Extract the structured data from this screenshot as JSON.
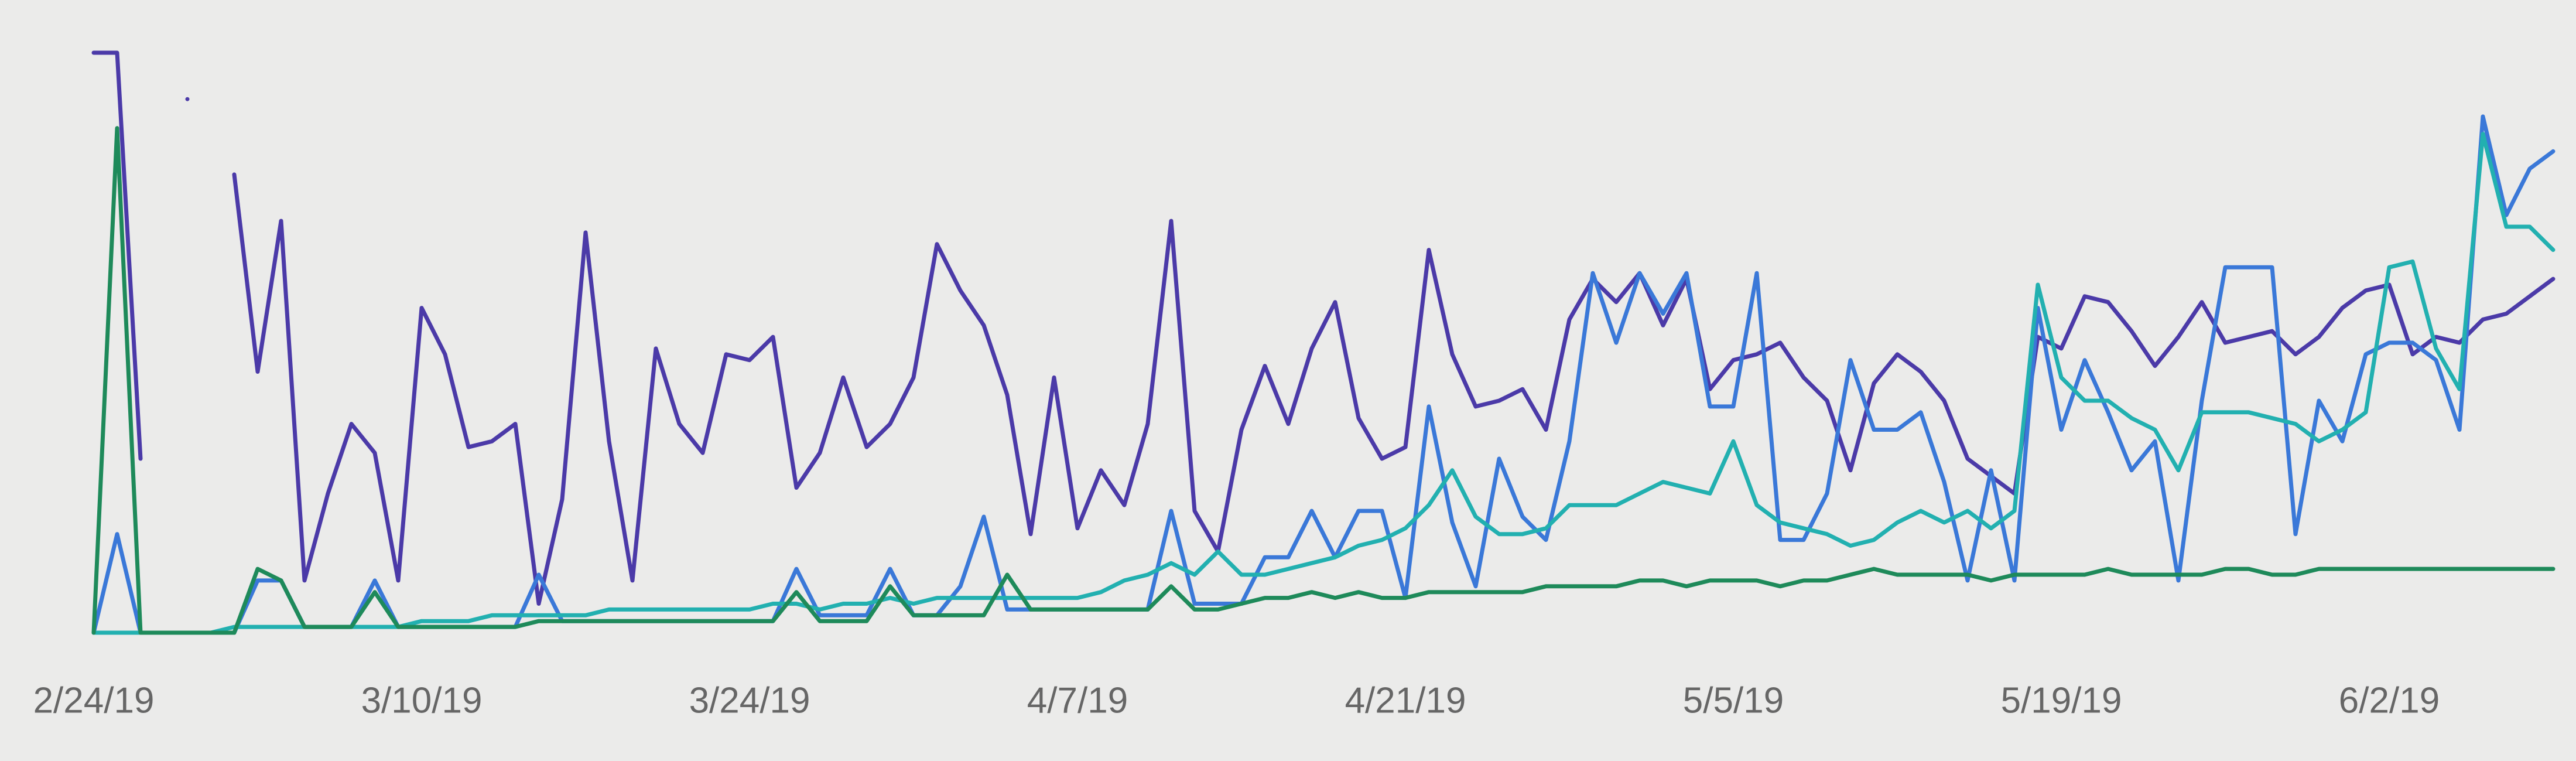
{
  "chart_data": {
    "type": "line",
    "categories": [
      "2/24/19",
      null,
      null,
      null,
      null,
      null,
      null,
      null,
      null,
      null,
      null,
      null,
      null,
      null,
      "3/10/19",
      null,
      null,
      null,
      null,
      null,
      null,
      null,
      null,
      null,
      null,
      null,
      null,
      null,
      "3/24/19",
      null,
      null,
      null,
      null,
      null,
      null,
      null,
      null,
      null,
      null,
      null,
      null,
      null,
      "4/7/19",
      null,
      null,
      null,
      null,
      null,
      null,
      null,
      null,
      null,
      null,
      null,
      null,
      null,
      "4/21/19",
      null,
      null,
      null,
      null,
      null,
      null,
      null,
      null,
      null,
      null,
      null,
      null,
      null,
      "5/5/19",
      null,
      null,
      null,
      null,
      null,
      null,
      null,
      null,
      null,
      null,
      null,
      null,
      null,
      "5/19/19",
      null,
      null,
      null,
      null,
      null,
      null,
      null,
      null,
      null,
      null,
      null,
      null,
      null,
      "6/2/19",
      null,
      null,
      null,
      null,
      null,
      null,
      null
    ],
    "ylim": [
      0,
      100
    ],
    "series": [
      {
        "color": "#4b3aa8",
        "values": [
          100,
          100,
          30,
          null,
          92,
          null,
          79,
          45,
          71,
          9,
          24,
          36,
          31,
          9,
          56,
          48,
          32,
          33,
          36,
          5,
          23,
          69,
          33,
          9,
          49,
          36,
          31,
          48,
          47,
          51,
          25,
          31,
          44,
          32,
          36,
          44,
          67,
          59,
          53,
          41,
          17,
          44,
          18,
          28,
          22,
          36,
          71,
          21,
          14,
          35,
          46,
          36,
          49,
          57,
          37,
          30,
          32,
          66,
          48,
          39,
          40,
          42,
          35,
          54,
          61,
          57,
          62,
          53,
          61,
          42,
          47,
          48,
          50,
          44,
          40,
          28,
          43,
          48,
          45,
          40,
          30,
          27,
          24,
          51,
          49,
          58,
          57,
          52,
          46,
          51,
          57,
          50,
          51,
          52,
          48,
          51,
          56,
          59,
          60,
          48,
          51,
          50,
          54,
          55,
          58,
          61
        ]
      },
      {
        "color": "#3a78d8",
        "values": [
          0,
          17,
          0,
          0,
          0,
          0,
          0,
          9,
          9,
          1,
          1,
          1,
          9,
          1,
          1,
          1,
          1,
          1,
          1,
          10,
          2,
          2,
          2,
          2,
          2,
          2,
          2,
          2,
          2,
          2,
          11,
          3,
          3,
          3,
          11,
          3,
          3,
          8,
          20,
          4,
          4,
          4,
          4,
          4,
          4,
          4,
          21,
          5,
          5,
          5,
          13,
          13,
          21,
          13,
          21,
          21,
          6,
          39,
          19,
          8,
          30,
          20,
          16,
          33,
          62,
          50,
          62,
          55,
          62,
          39,
          39,
          62,
          16,
          16,
          24,
          47,
          35,
          35,
          38,
          26,
          9,
          28,
          9,
          56,
          35,
          47,
          38,
          28,
          33,
          9,
          40,
          63,
          63,
          63,
          17,
          40,
          33,
          48,
          50,
          50,
          47,
          35,
          89,
          72,
          80,
          83
        ]
      },
      {
        "color": "#22b0b0",
        "values": [
          0,
          0,
          0,
          0,
          0,
          0,
          1,
          1,
          1,
          1,
          1,
          1,
          1,
          1,
          2,
          2,
          2,
          3,
          3,
          3,
          3,
          3,
          4,
          4,
          4,
          4,
          4,
          4,
          4,
          5,
          5,
          4,
          5,
          5,
          6,
          5,
          6,
          6,
          6,
          6,
          6,
          6,
          6,
          7,
          9,
          10,
          12,
          10,
          14,
          10,
          10,
          11,
          12,
          13,
          15,
          16,
          18,
          22,
          28,
          20,
          17,
          17,
          18,
          22,
          22,
          22,
          24,
          26,
          25,
          24,
          33,
          22,
          19,
          18,
          17,
          15,
          16,
          19,
          21,
          19,
          21,
          18,
          21,
          60,
          44,
          40,
          40,
          37,
          35,
          28,
          38,
          38,
          38,
          37,
          36,
          33,
          35,
          38,
          63,
          64,
          49,
          42,
          86,
          70,
          70,
          66
        ]
      },
      {
        "color": "#1e8a5a",
        "values": [
          0,
          87,
          0,
          0,
          0,
          0,
          0,
          11,
          9,
          1,
          1,
          1,
          7,
          1,
          1,
          1,
          1,
          1,
          1,
          2,
          2,
          2,
          2,
          2,
          2,
          2,
          2,
          2,
          2,
          2,
          7,
          2,
          2,
          2,
          8,
          3,
          3,
          3,
          3,
          10,
          4,
          4,
          4,
          4,
          4,
          4,
          8,
          4,
          4,
          5,
          6,
          6,
          7,
          6,
          7,
          6,
          6,
          7,
          7,
          7,
          7,
          7,
          8,
          8,
          8,
          8,
          9,
          9,
          8,
          9,
          9,
          9,
          8,
          9,
          9,
          10,
          11,
          10,
          10,
          10,
          10,
          9,
          10,
          10,
          10,
          10,
          11,
          10,
          10,
          10,
          10,
          11,
          11,
          10,
          10,
          11,
          11,
          11,
          11,
          11,
          11,
          11,
          11,
          11,
          11,
          11
        ]
      }
    ]
  }
}
